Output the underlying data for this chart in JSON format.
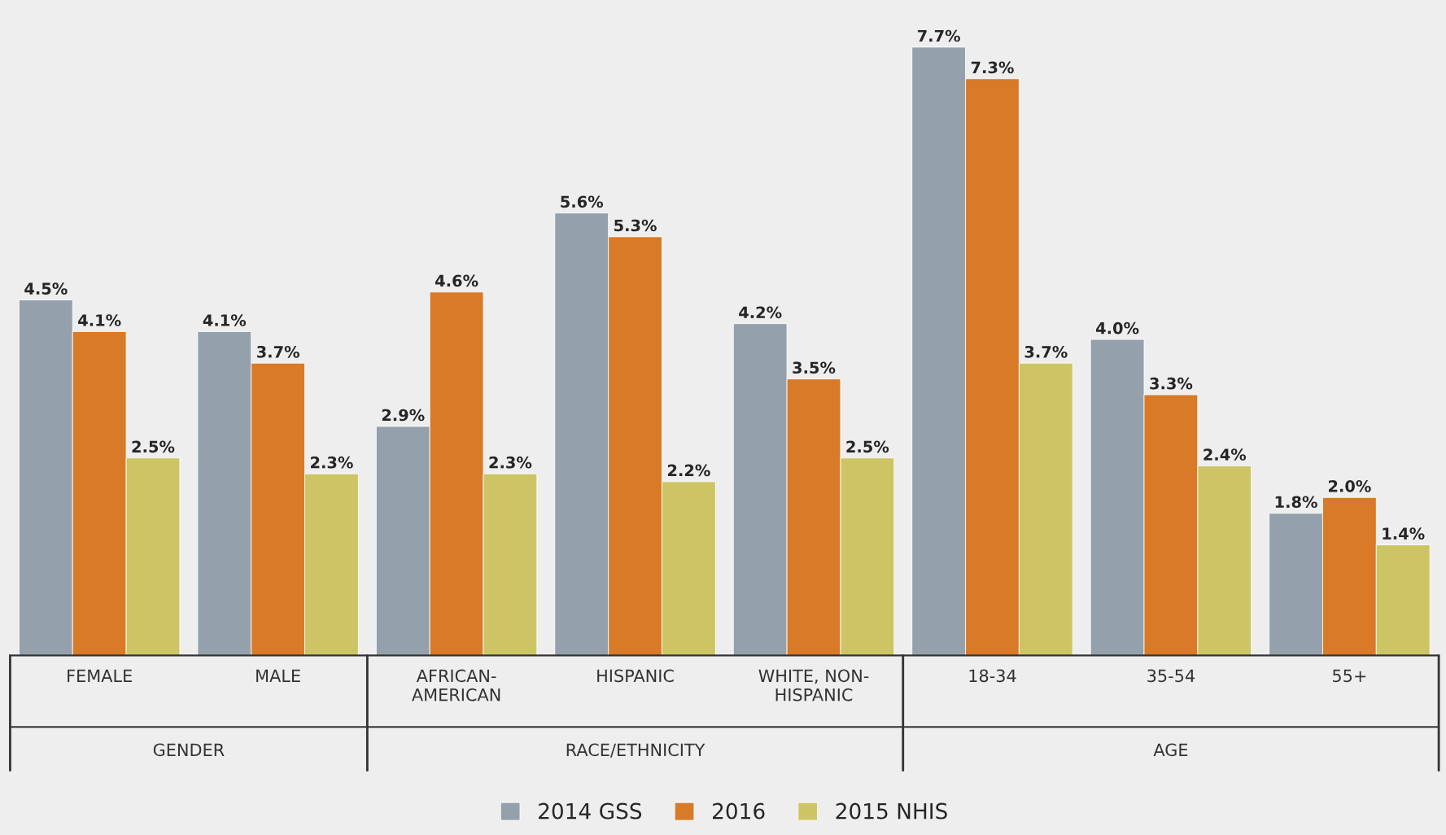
{
  "chart_data": {
    "type": "bar",
    "categories": [
      "FEMALE",
      "MALE",
      "AFRICAN-\nAMERICAN",
      "HISPANIC",
      "WHITE, NON-\nHISPANIC",
      "18-34",
      "35-54",
      "55+"
    ],
    "series": [
      {
        "name": "2014 GSS",
        "color": "#95a0ad",
        "values": [
          4.5,
          4.1,
          2.9,
          5.6,
          4.2,
          7.7,
          4.0,
          1.8
        ],
        "value_labels": [
          "4.5%",
          "4.1%",
          "2.9%",
          "5.6%",
          "4.2%",
          "7.7%",
          "4.0%",
          "1.8%"
        ]
      },
      {
        "name": "2016",
        "color": "#d87a27",
        "values": [
          4.1,
          3.7,
          4.6,
          5.3,
          3.5,
          7.3,
          3.3,
          2.0
        ],
        "value_labels": [
          "4.1%",
          "3.7%",
          "4.6%",
          "5.3%",
          "3.5%",
          "7.3%",
          "3.3%",
          "2.0%"
        ]
      },
      {
        "name": "2015 NHIS",
        "color": "#cdc565",
        "values": [
          2.5,
          2.3,
          2.3,
          2.2,
          2.5,
          3.7,
          2.4,
          1.4
        ],
        "value_labels": [
          "2.5%",
          "2.3%",
          "2.3%",
          "2.2%",
          "2.5%",
          "3.7%",
          "2.4%",
          "1.4%"
        ]
      }
    ],
    "annotations": [
      "GENDER",
      "RACE/ETHNICITY",
      "AGE"
    ],
    "legend": "bottom",
    "grid": false
  }
}
